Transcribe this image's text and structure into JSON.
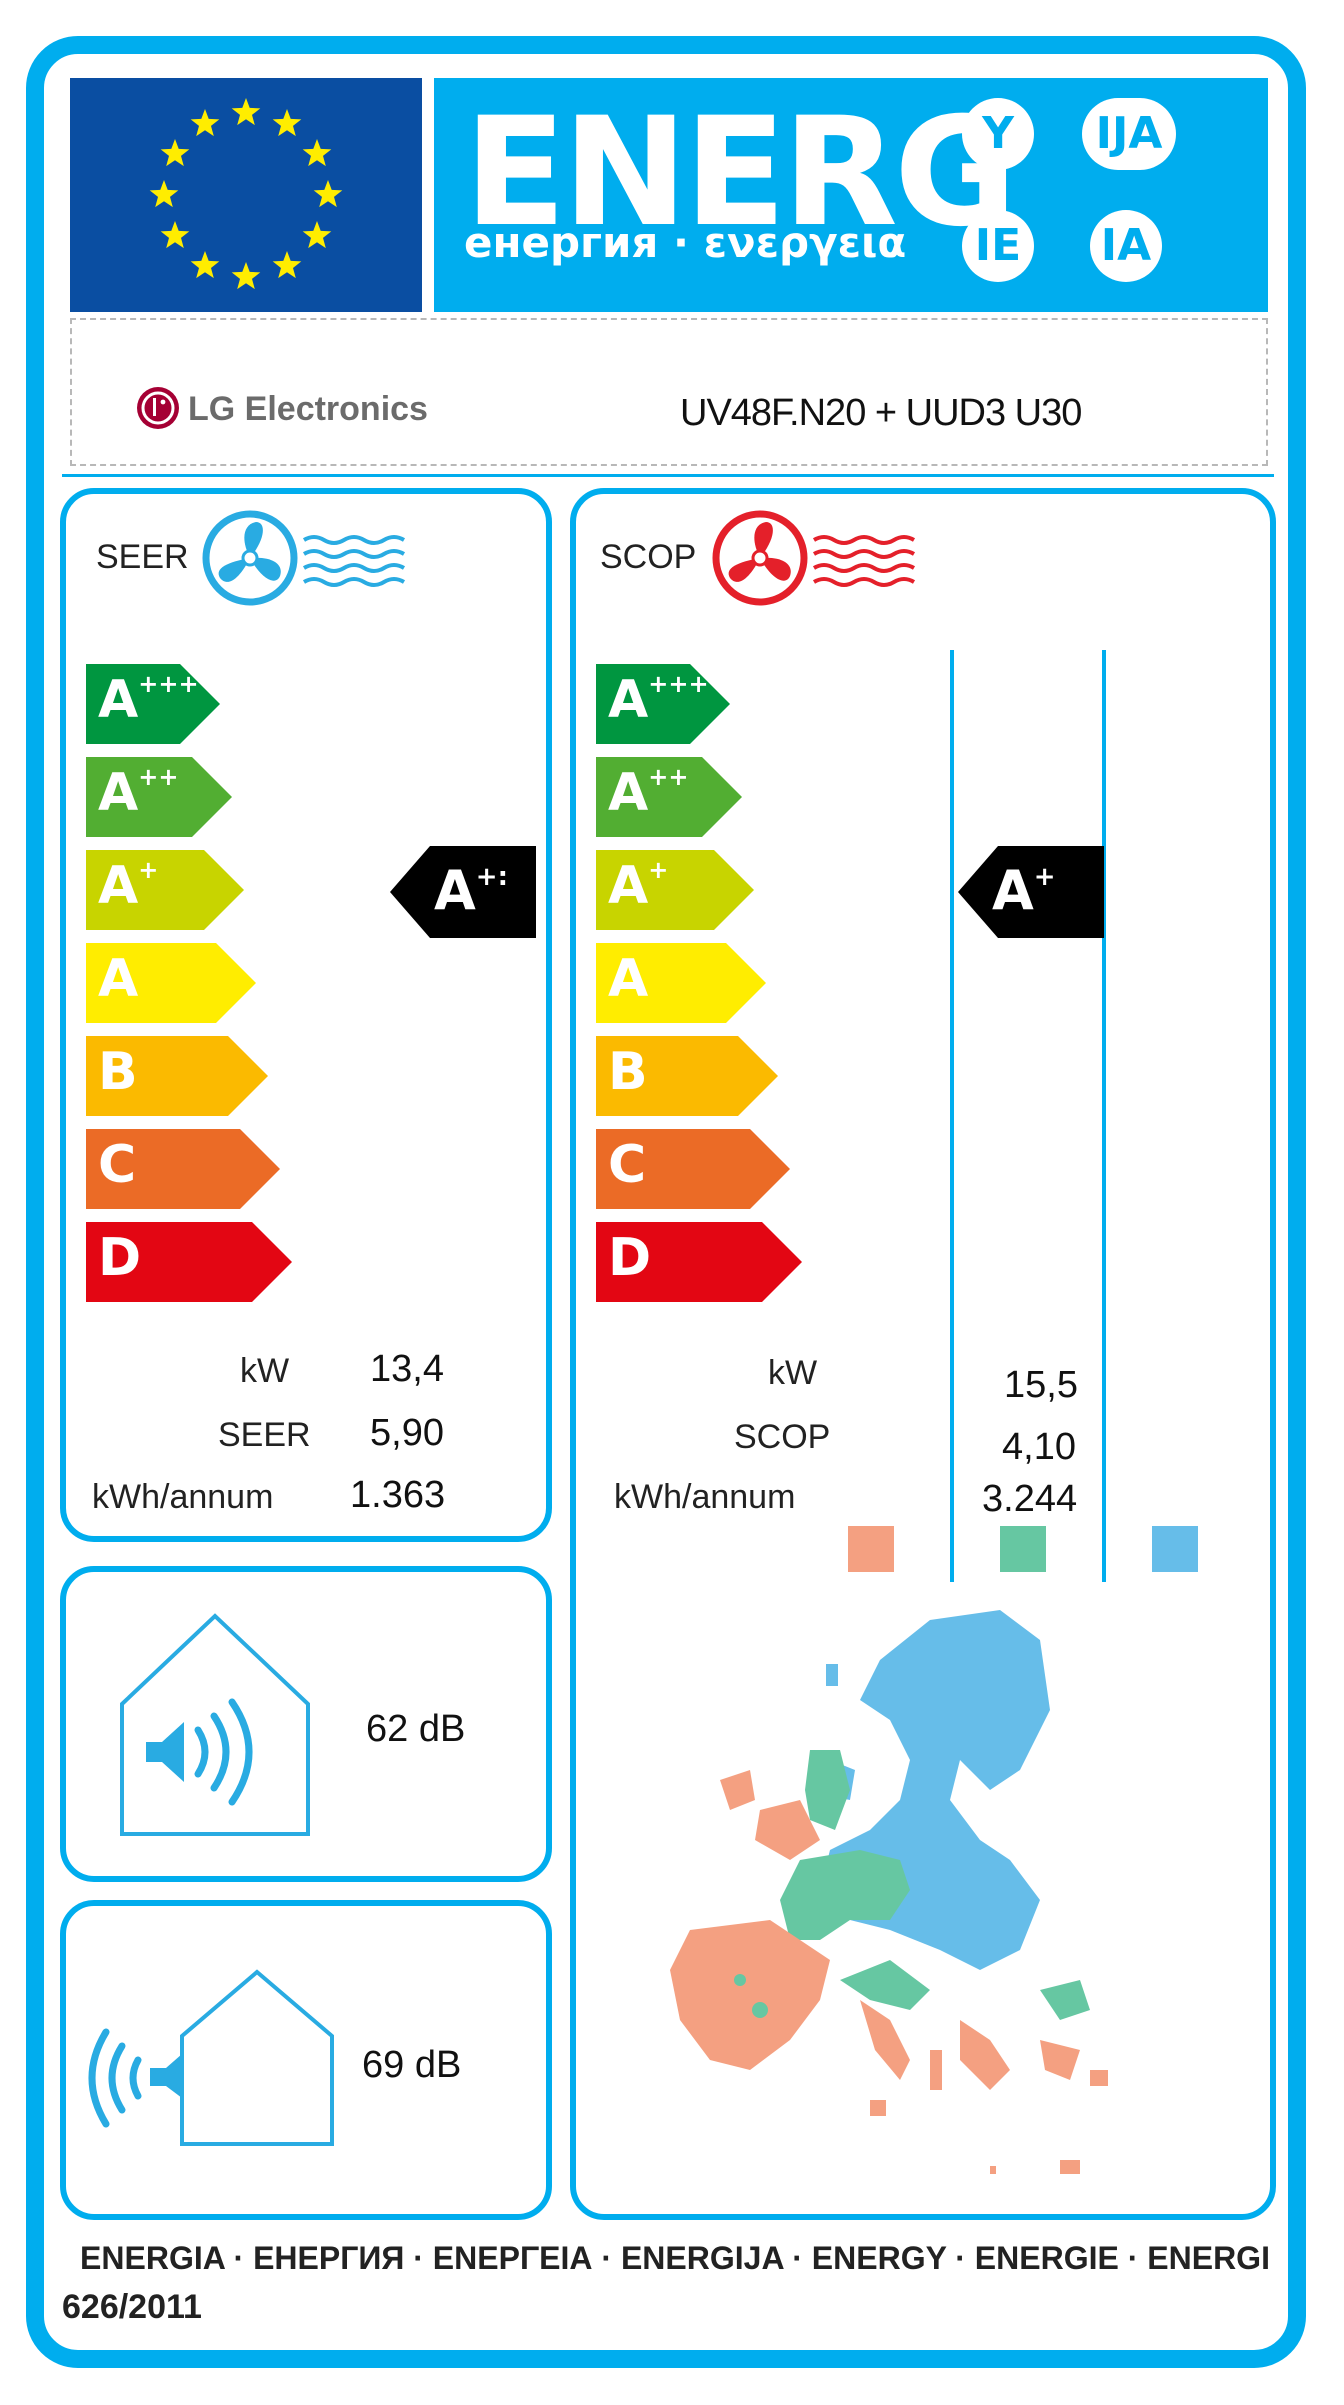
{
  "header": {
    "energy_word": "ENERG",
    "energy_subtitle": "енергия · ενεργεια",
    "suffixes": [
      "Y",
      "IJA",
      "IE",
      "IA"
    ]
  },
  "supplier": {
    "brand": "LG Electronics",
    "model": "UV48F.N20 + UUD3 U30"
  },
  "cooling": {
    "title": "SEER",
    "classes": [
      {
        "base": "A",
        "sup": "+++",
        "color": "#009640"
      },
      {
        "base": "A",
        "sup": "++",
        "color": "#52ae32"
      },
      {
        "base": "A",
        "sup": "+",
        "color": "#c8d400"
      },
      {
        "base": "A",
        "sup": "",
        "color": "#ffed00"
      },
      {
        "base": "B",
        "sup": "",
        "color": "#fbba00"
      },
      {
        "base": "C",
        "sup": "",
        "color": "#eb6b26"
      },
      {
        "base": "D",
        "sup": "",
        "color": "#e30613"
      }
    ],
    "rating": {
      "base": "A",
      "sup": "+:"
    },
    "rows": [
      {
        "label": "kW",
        "value": "13,4"
      },
      {
        "label": "SEER",
        "value": "5,90"
      },
      {
        "label": "kWh/annum",
        "value": "1.363"
      }
    ]
  },
  "heating": {
    "title": "SCOP",
    "classes": [
      {
        "base": "A",
        "sup": "+++",
        "color": "#009640"
      },
      {
        "base": "A",
        "sup": "++",
        "color": "#52ae32"
      },
      {
        "base": "A",
        "sup": "+",
        "color": "#c8d400"
      },
      {
        "base": "A",
        "sup": "",
        "color": "#ffed00"
      },
      {
        "base": "B",
        "sup": "",
        "color": "#fbba00"
      },
      {
        "base": "C",
        "sup": "",
        "color": "#eb6b26"
      },
      {
        "base": "D",
        "sup": "",
        "color": "#e30613"
      }
    ],
    "rating": {
      "base": "A",
      "sup": "+"
    },
    "rows": [
      {
        "label": "kW",
        "value": "15,5"
      },
      {
        "label": "SCOP",
        "value": "4,10"
      },
      {
        "label": "kWh/annum",
        "value": "3.244"
      }
    ],
    "zone_colors": [
      "#f4a081",
      "#66c7a2",
      "#66bde9"
    ]
  },
  "noise": {
    "indoor": "62 dB",
    "outdoor": "69 dB"
  },
  "footer": {
    "words": "ENERGIA · ЕНЕРГИЯ · ΕΝΕΡΓΕΙΑ · ENERGIJA · ENERGY · ENERGIE · ENERGI",
    "regulation": "626/2011"
  }
}
